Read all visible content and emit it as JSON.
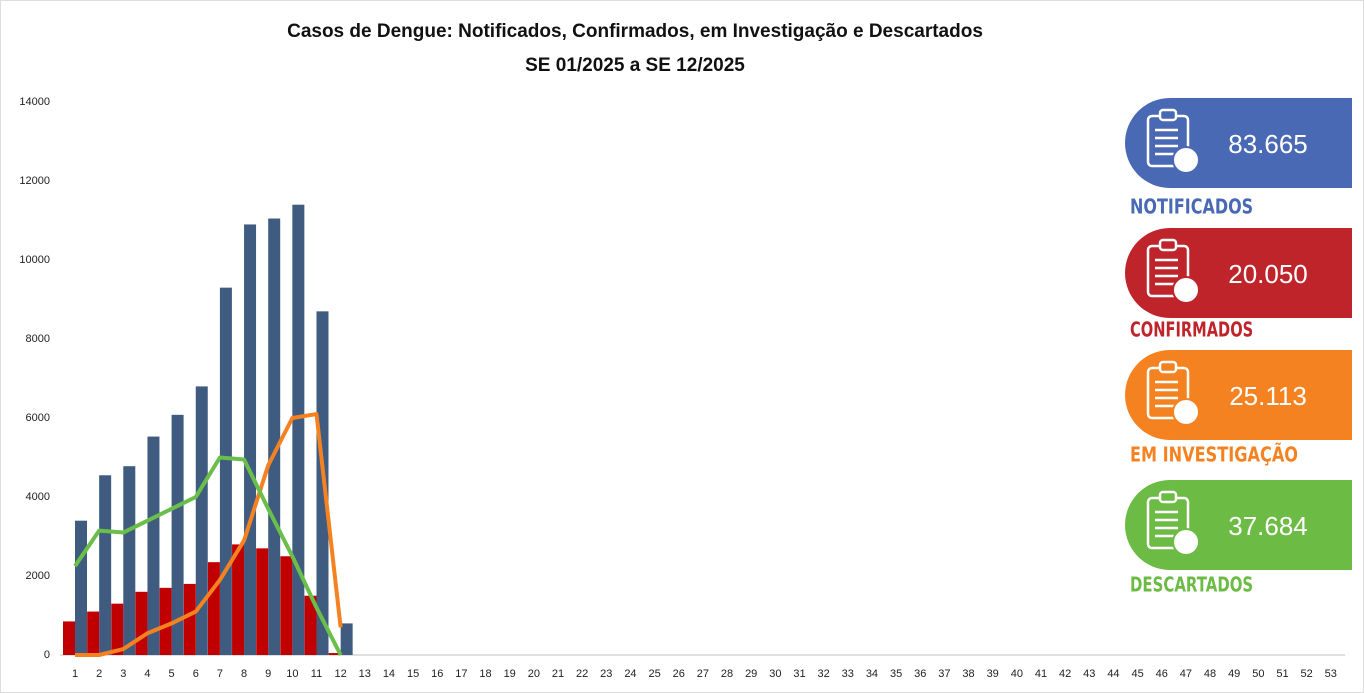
{
  "chart_data": {
    "type": "bar",
    "title": "Casos de Dengue: Notificados,  Confirmados,  em Investigação e Descartados",
    "subtitle": "SE 01/2025 a SE 12/2025",
    "categories": [
      1,
      2,
      3,
      4,
      5,
      6,
      7,
      8,
      9,
      10,
      11,
      12,
      13,
      14,
      15,
      16,
      17,
      18,
      19,
      20,
      21,
      22,
      23,
      24,
      25,
      26,
      27,
      28,
      29,
      30,
      31,
      32,
      33,
      34,
      35,
      36,
      37,
      38,
      39,
      40,
      41,
      42,
      43,
      44,
      45,
      46,
      47,
      48,
      49,
      50,
      51,
      52,
      53
    ],
    "ylim": [
      0,
      14000
    ],
    "yticks": [
      0,
      2000,
      4000,
      6000,
      8000,
      10000,
      12000,
      14000
    ],
    "series": [
      {
        "name": "NOTIFICADOS",
        "total": "83.665",
        "kind": "bar",
        "color": "#3f5b80",
        "card_color": "#4a69b5",
        "values": [
          3400,
          4550,
          4780,
          5530,
          6080,
          6800,
          9300,
          10900,
          11050,
          11400,
          8700,
          800,
          null,
          null,
          null,
          null,
          null,
          null,
          null,
          null,
          null,
          null,
          null,
          null,
          null,
          null,
          null,
          null,
          null,
          null,
          null,
          null,
          null,
          null,
          null,
          null,
          null,
          null,
          null,
          null,
          null,
          null,
          null,
          null,
          null,
          null,
          null,
          null,
          null,
          null,
          null,
          null,
          null
        ]
      },
      {
        "name": "CONFIRMADOS",
        "total": "20.050",
        "kind": "bar",
        "color": "#c00000",
        "card_color": "#c0242b",
        "values": [
          850,
          1100,
          1300,
          1600,
          1700,
          1800,
          2350,
          2800,
          2700,
          2500,
          1500,
          50,
          null,
          null,
          null,
          null,
          null,
          null,
          null,
          null,
          null,
          null,
          null,
          null,
          null,
          null,
          null,
          null,
          null,
          null,
          null,
          null,
          null,
          null,
          null,
          null,
          null,
          null,
          null,
          null,
          null,
          null,
          null,
          null,
          null,
          null,
          null,
          null,
          null,
          null,
          null,
          null,
          null
        ]
      },
      {
        "name": "EM INVESTIGAÇÃO",
        "total": "25.113",
        "kind": "line",
        "color": "#f58220",
        "card_color": "#f58220",
        "values": [
          0,
          0,
          150,
          550,
          800,
          1100,
          1900,
          2900,
          4800,
          6000,
          6100,
          700,
          null,
          null,
          null,
          null,
          null,
          null,
          null,
          null,
          null,
          null,
          null,
          null,
          null,
          null,
          null,
          null,
          null,
          null,
          null,
          null,
          null,
          null,
          null,
          null,
          null,
          null,
          null,
          null,
          null,
          null,
          null,
          null,
          null,
          null,
          null,
          null,
          null,
          null,
          null,
          null,
          null
        ]
      },
      {
        "name": "DESCARTADOS",
        "total": "37.684",
        "kind": "line",
        "color": "#6abf4b",
        "card_color": "#6cbb45",
        "values": [
          2250,
          3150,
          3100,
          3400,
          3700,
          4000,
          5000,
          4950,
          3700,
          2500,
          1200,
          0,
          null,
          null,
          null,
          null,
          null,
          null,
          null,
          null,
          null,
          null,
          null,
          null,
          null,
          null,
          null,
          null,
          null,
          null,
          null,
          null,
          null,
          null,
          null,
          null,
          null,
          null,
          null,
          null,
          null,
          null,
          null,
          null,
          null,
          null,
          null,
          null,
          null,
          null,
          null,
          null,
          null
        ]
      }
    ]
  }
}
